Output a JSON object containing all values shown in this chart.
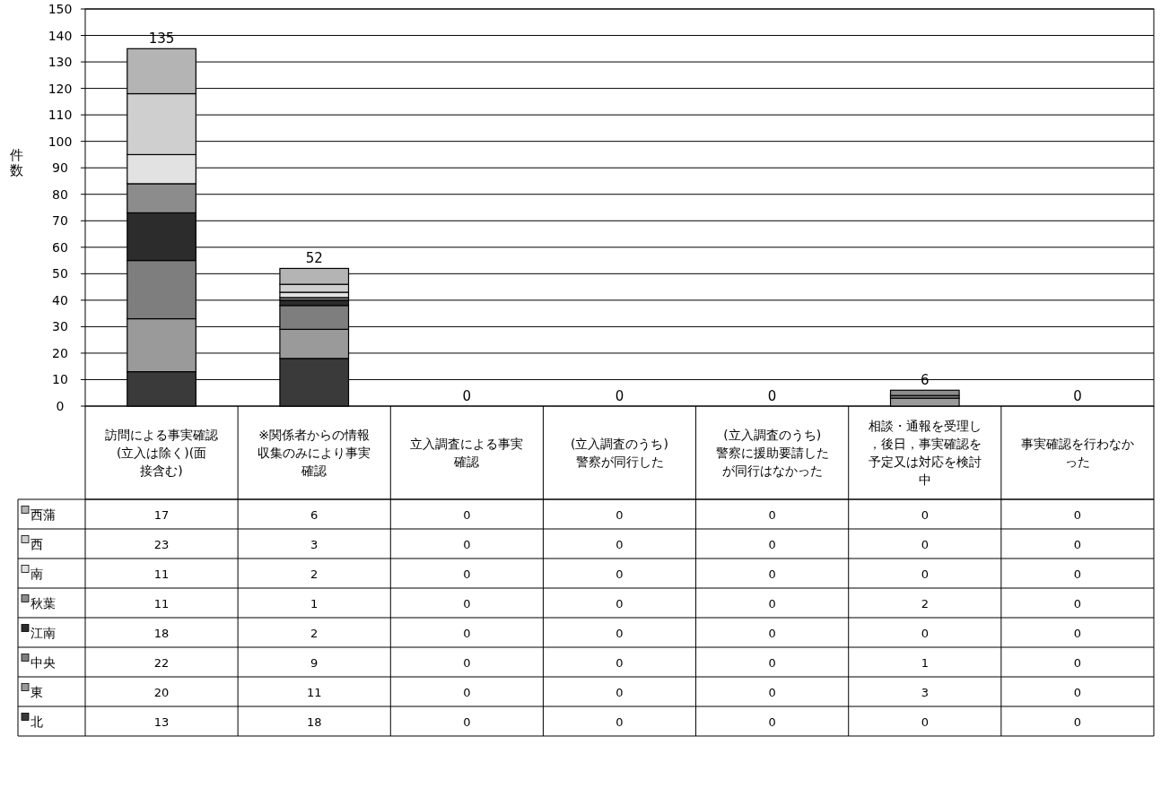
{
  "chart_data": {
    "type": "bar",
    "stacked": true,
    "ylabel": "件数",
    "categories": [
      "訪問による事実確認(立入は除く)(面接含む)",
      "※関係者からの情報収集のみにより事実確認",
      "立入調査による事実確認",
      "(立入調査のうち)警察が同行した",
      "(立入調査のうち)警察に援助要請したが同行はなかった",
      "相談・通報を受理し，後日，事実確認を予定又は対応を検討中",
      "事実確認を行わなかった"
    ],
    "series": [
      {
        "name": "北",
        "color": "#3a3a3a",
        "values": [
          13,
          18,
          0,
          0,
          0,
          0,
          0
        ]
      },
      {
        "name": "東",
        "color": "#9a9a9a",
        "values": [
          20,
          11,
          0,
          0,
          0,
          3,
          0
        ]
      },
      {
        "name": "中央",
        "color": "#7e7e7e",
        "values": [
          22,
          9,
          0,
          0,
          0,
          1,
          0
        ]
      },
      {
        "name": "江南",
        "color": "#2c2c2c",
        "values": [
          18,
          2,
          0,
          0,
          0,
          0,
          0
        ]
      },
      {
        "name": "秋葉",
        "color": "#8c8c8c",
        "values": [
          11,
          1,
          0,
          0,
          0,
          2,
          0
        ]
      },
      {
        "name": "南",
        "color": "#e2e2e2",
        "values": [
          11,
          2,
          0,
          0,
          0,
          0,
          0
        ]
      },
      {
        "name": "西",
        "color": "#cfcfcf",
        "values": [
          23,
          3,
          0,
          0,
          0,
          0,
          0
        ]
      },
      {
        "name": "西蒲",
        "color": "#b4b4b4",
        "values": [
          17,
          6,
          0,
          0,
          0,
          0,
          0
        ]
      }
    ],
    "totals": [
      "135",
      "52",
      "0",
      "0",
      "0",
      "6",
      "0"
    ],
    "data_labels": true,
    "ylim": [
      0,
      150
    ],
    "yticks": [
      0,
      10,
      20,
      30,
      40,
      50,
      60,
      70,
      80,
      90,
      100,
      110,
      120,
      130,
      140,
      150
    ],
    "grid": "y",
    "legend": "bottom"
  }
}
